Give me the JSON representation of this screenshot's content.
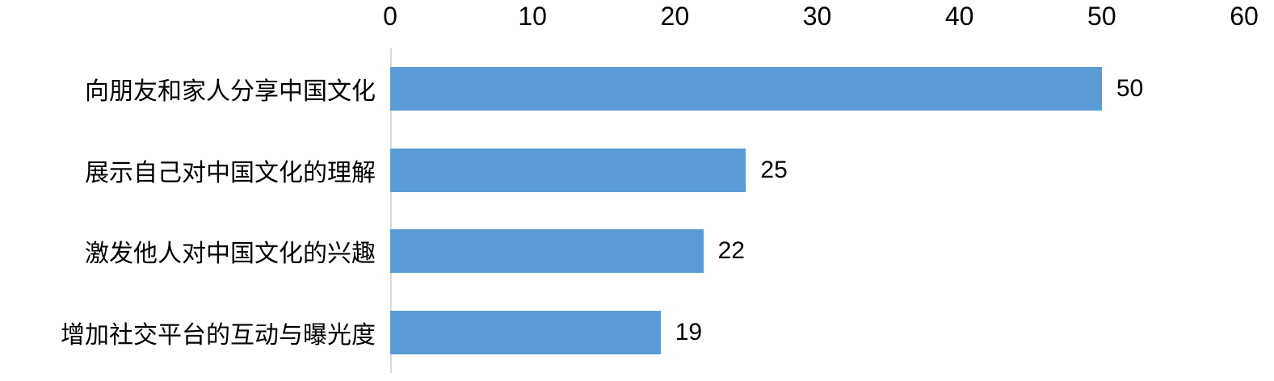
{
  "chart_data": {
    "type": "bar",
    "orientation": "horizontal",
    "title": "",
    "xlabel": "",
    "ylabel": "",
    "categories": [
      "向朋友和家人分享中国文化",
      "展示自己对中国文化的理解",
      "激发他人对中国文化的兴趣",
      "增加社交平台的互动与曝光度"
    ],
    "values": [
      50,
      25,
      22,
      19
    ],
    "data_labels": [
      "50",
      "25",
      "22",
      "19"
    ],
    "xlim": [
      0,
      60
    ],
    "x_ticks": [
      0,
      10,
      20,
      30,
      40,
      50,
      60
    ],
    "grid": false,
    "legend": false,
    "bar_color": "#5b9bd5",
    "axis_line_color": "#d9d9d9",
    "text_color": "#000000"
  }
}
